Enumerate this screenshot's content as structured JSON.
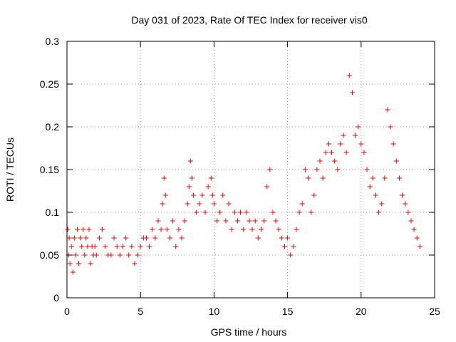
{
  "chart_data": {
    "type": "scatter",
    "title": "Day 031 of 2023, Rate Of TEC Index for receiver vis0",
    "xlabel": "GPS time / hours",
    "ylabel": "ROTI / TECUs",
    "xlim": [
      0,
      25
    ],
    "ylim": [
      0,
      0.3
    ],
    "xticks": [
      0,
      5,
      10,
      15,
      20,
      25
    ],
    "xtick_labels": [
      "0",
      "5",
      "10",
      "15",
      "20",
      "25"
    ],
    "yticks": [
      0,
      0.05,
      0.1,
      0.15,
      0.2,
      0.25,
      0.3
    ],
    "ytick_labels": [
      "0",
      "0.05",
      "0.1",
      "0.15",
      "0.2",
      "0.25",
      "0.3"
    ],
    "grid": true,
    "marker": "+",
    "color": "#ff0000",
    "x": [
      0.05,
      0.1,
      0.15,
      0.2,
      0.3,
      0.4,
      0.5,
      0.6,
      0.7,
      0.8,
      0.9,
      1.0,
      1.1,
      1.2,
      1.3,
      1.4,
      1.5,
      1.6,
      1.7,
      1.8,
      1.9,
      2.0,
      2.2,
      2.4,
      2.6,
      2.8,
      3.0,
      3.2,
      3.4,
      3.6,
      3.8,
      4.0,
      4.2,
      4.4,
      4.6,
      4.8,
      5.0,
      5.2,
      5.4,
      5.6,
      5.8,
      6.0,
      6.2,
      6.4,
      6.5,
      6.6,
      6.7,
      6.8,
      7.0,
      7.2,
      7.4,
      7.6,
      7.8,
      8.0,
      8.2,
      8.3,
      8.4,
      8.5,
      8.6,
      8.8,
      9.0,
      9.2,
      9.4,
      9.6,
      9.8,
      9.9,
      10.0,
      10.2,
      10.4,
      10.6,
      10.8,
      11.0,
      11.2,
      11.4,
      11.6,
      11.8,
      12.0,
      12.2,
      12.4,
      12.6,
      12.8,
      13.0,
      13.2,
      13.4,
      13.6,
      13.8,
      14.0,
      14.2,
      14.4,
      14.6,
      14.8,
      15.0,
      15.2,
      15.4,
      15.6,
      15.8,
      16.0,
      16.2,
      16.4,
      16.6,
      16.8,
      17.0,
      17.2,
      17.4,
      17.6,
      17.8,
      18.0,
      18.2,
      18.4,
      18.6,
      18.8,
      19.0,
      19.2,
      19.4,
      19.6,
      19.8,
      20.0,
      20.2,
      20.4,
      20.6,
      20.8,
      21.0,
      21.2,
      21.4,
      21.6,
      21.8,
      22.0,
      22.2,
      22.4,
      22.6,
      22.8,
      23.0,
      23.2,
      23.4,
      23.6,
      23.8,
      24.0
    ],
    "y": [
      0.08,
      0.05,
      0.07,
      0.04,
      0.06,
      0.03,
      0.07,
      0.05,
      0.08,
      0.04,
      0.07,
      0.06,
      0.08,
      0.05,
      0.07,
      0.06,
      0.08,
      0.04,
      0.06,
      0.05,
      0.06,
      0.05,
      0.07,
      0.08,
      0.06,
      0.05,
      0.05,
      0.07,
      0.06,
      0.05,
      0.06,
      0.07,
      0.05,
      0.06,
      0.04,
      0.05,
      0.06,
      0.07,
      0.07,
      0.06,
      0.08,
      0.07,
      0.09,
      0.08,
      0.11,
      0.14,
      0.12,
      0.08,
      0.07,
      0.09,
      0.06,
      0.08,
      0.07,
      0.09,
      0.11,
      0.13,
      0.16,
      0.14,
      0.12,
      0.1,
      0.11,
      0.12,
      0.1,
      0.13,
      0.14,
      0.12,
      0.11,
      0.09,
      0.1,
      0.12,
      0.09,
      0.11,
      0.08,
      0.1,
      0.09,
      0.1,
      0.08,
      0.1,
      0.09,
      0.08,
      0.09,
      0.07,
      0.08,
      0.09,
      0.13,
      0.15,
      0.1,
      0.09,
      0.08,
      0.07,
      0.06,
      0.07,
      0.05,
      0.06,
      0.08,
      0.1,
      0.11,
      0.15,
      0.14,
      0.1,
      0.12,
      0.15,
      0.16,
      0.14,
      0.17,
      0.18,
      0.17,
      0.16,
      0.15,
      0.18,
      0.19,
      0.17,
      0.26,
      0.24,
      0.19,
      0.2,
      0.18,
      0.17,
      0.15,
      0.13,
      0.14,
      0.12,
      0.1,
      0.11,
      0.14,
      0.22,
      0.2,
      0.18,
      0.16,
      0.14,
      0.12,
      0.11,
      0.1,
      0.09,
      0.08,
      0.07,
      0.06
    ]
  }
}
